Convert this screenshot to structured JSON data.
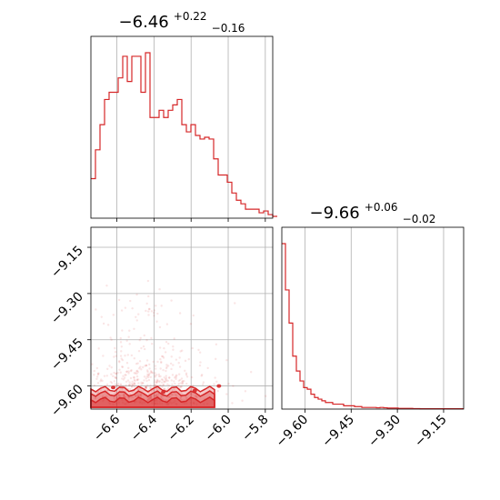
{
  "chart_data": {
    "type": "corner",
    "color": "#d62728",
    "fill_color": "#f4a6a6",
    "grid": true,
    "panels": [
      {
        "id": "hist-param1",
        "type": "histogram",
        "title": {
          "median": "−6.46",
          "plus": "+0.22",
          "minus": "−0.16"
        },
        "xlim": [
          -6.74,
          -5.76
        ],
        "bins": {
          "x_start": -6.74,
          "width": 0.0245,
          "counts": [
            0.22,
            0.38,
            0.52,
            0.66,
            0.7,
            0.7,
            0.78,
            0.9,
            0.76,
            0.9,
            0.9,
            0.7,
            0.92,
            0.56,
            0.56,
            0.6,
            0.56,
            0.6,
            0.63,
            0.66,
            0.52,
            0.48,
            0.52,
            0.46,
            0.44,
            0.45,
            0.44,
            0.33,
            0.24,
            0.24,
            0.2,
            0.14,
            0.1,
            0.08,
            0.05,
            0.05,
            0.05,
            0.03,
            0.04,
            0.02,
            0.01,
            0.01
          ]
        }
      },
      {
        "id": "hist-param2",
        "type": "histogram",
        "title": {
          "median": "−9.66",
          "plus": "+0.06",
          "minus": "−0.02"
        },
        "xlim": [
          -9.675,
          -9.085
        ],
        "bins": {
          "x_start": -9.675,
          "width": 0.0118,
          "counts": [
            1.0,
            0.72,
            0.52,
            0.32,
            0.23,
            0.17,
            0.13,
            0.12,
            0.09,
            0.07,
            0.06,
            0.05,
            0.04,
            0.04,
            0.03,
            0.03,
            0.03,
            0.02,
            0.02,
            0.02,
            0.015,
            0.015,
            0.01,
            0.01,
            0.01,
            0.01,
            0.008,
            0.01,
            0.008,
            0.006,
            0.006,
            0.006,
            0.004,
            0.004,
            0.004,
            0.004,
            0.003,
            0.003,
            0.002,
            0.002,
            0.002,
            0.002,
            0.002,
            0.002,
            0.002,
            0.002,
            0.002,
            0.002,
            0.002,
            0.002
          ]
        }
      },
      {
        "id": "scatter-joint",
        "type": "scatter-contour",
        "xlim": [
          -6.74,
          -5.76
        ],
        "ylim": [
          -9.675,
          -9.085
        ]
      }
    ],
    "axes": {
      "param1": {
        "ticks": [
          -6.6,
          -6.4,
          -6.2,
          -6.0,
          -5.8
        ],
        "labels": [
          "−6.6",
          "−6.4",
          "−6.2",
          "−6.0",
          "−5.8"
        ]
      },
      "param2": {
        "ticks": [
          -9.6,
          -9.45,
          -9.3,
          -9.15
        ],
        "labels": [
          "−9.60",
          "−9.45",
          "−9.30",
          "−9.15"
        ]
      }
    }
  }
}
